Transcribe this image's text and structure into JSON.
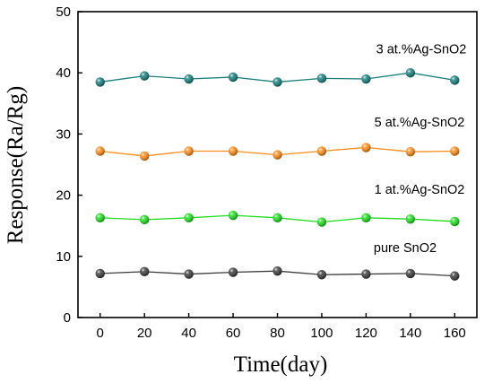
{
  "chart_data": {
    "type": "line",
    "xlabel": "Time(day)",
    "ylabel": "Response(Ra/Rg)",
    "xlim": [
      -10,
      170
    ],
    "ylim": [
      0,
      50
    ],
    "x_ticks": [
      0,
      20,
      40,
      60,
      80,
      100,
      120,
      140,
      160
    ],
    "y_ticks": [
      0,
      10,
      20,
      30,
      40,
      50
    ],
    "grid": false,
    "x": [
      0,
      20,
      40,
      60,
      80,
      100,
      120,
      140,
      160
    ],
    "series": [
      {
        "name": "3 at.%Ag-SnO2",
        "color": "#1a7f7f",
        "values": [
          38.5,
          39.5,
          39.0,
          39.3,
          38.5,
          39.1,
          39.0,
          40.0,
          38.8
        ]
      },
      {
        "name": "5 at.%Ag-SnO2",
        "color": "#ff8c1a",
        "values": [
          27.2,
          26.4,
          27.2,
          27.2,
          26.6,
          27.2,
          27.8,
          27.1,
          27.2
        ]
      },
      {
        "name": "1 at.%Ag-SnO2",
        "color": "#22dd22",
        "values": [
          16.3,
          16.0,
          16.3,
          16.7,
          16.3,
          15.6,
          16.3,
          16.1,
          15.7
        ]
      },
      {
        "name": "pure SnO2",
        "color": "#3c3c3c",
        "values": [
          7.2,
          7.5,
          7.1,
          7.4,
          7.6,
          7.0,
          7.1,
          7.2,
          6.8
        ]
      }
    ]
  }
}
